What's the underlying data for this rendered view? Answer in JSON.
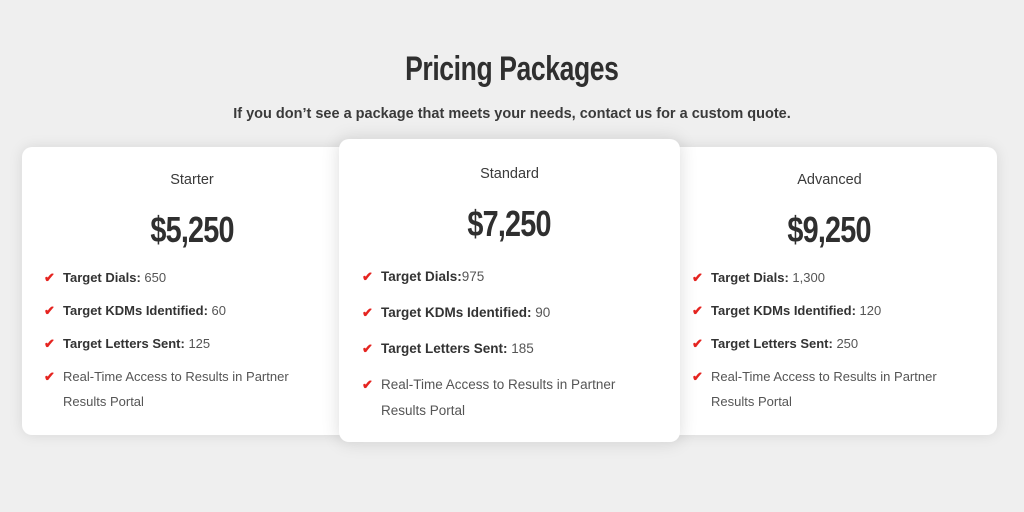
{
  "header": {
    "title": "Pricing Packages",
    "subtitle": "If you don’t see a package that meets your needs, contact us for a custom quote."
  },
  "accent_color": "#e52420",
  "check_icon": "checkmark-icon",
  "packages": [
    {
      "name": "Starter",
      "price": "$5,250",
      "features": [
        {
          "label": "Target Dials:",
          "value": " 650"
        },
        {
          "label": "Target KDMs Identified:",
          "value": " 60"
        },
        {
          "label": "Target Letters Sent:",
          "value": " 125"
        },
        {
          "label": "",
          "value": "Real-Time Access to Results in Partner Results Portal"
        }
      ]
    },
    {
      "name": "Standard",
      "price": "$7,250",
      "features": [
        {
          "label": "Target Dials:",
          "value": "975"
        },
        {
          "label": "Target KDMs Identified:",
          "value": " 90"
        },
        {
          "label": "Target Letters Sent:",
          "value": " 185"
        },
        {
          "label": "",
          "value": "Real-Time Access to Results in Partner Results Portal"
        }
      ]
    },
    {
      "name": "Advanced",
      "price": "$9,250",
      "features": [
        {
          "label": "Target Dials:",
          "value": " 1,300"
        },
        {
          "label": "Target KDMs Identified:",
          "value": " 120"
        },
        {
          "label": "Target Letters Sent:",
          "value": " 250"
        },
        {
          "label": "",
          "value": "Real-Time Access to Results in Partner Results Portal"
        }
      ]
    }
  ]
}
